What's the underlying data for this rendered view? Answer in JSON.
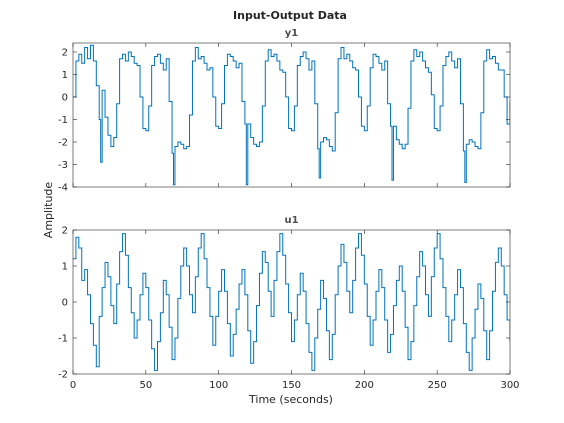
{
  "figure": {
    "title": "Input-Output Data",
    "xlabel": "Time (seconds)",
    "ylabel": "Amplitude",
    "line_color": "#0072BD",
    "axis_color": "#262626"
  },
  "chart_data": [
    {
      "type": "line",
      "title": "y1",
      "xlim": [
        0,
        300
      ],
      "ylim": [
        -4,
        2.4
      ],
      "yticks": [
        2,
        1,
        0,
        -1,
        -2,
        -3,
        -4
      ],
      "xticks": [
        0,
        50,
        100,
        150,
        200,
        250,
        300
      ],
      "show_xtick_labels": false,
      "series": [
        {
          "x": [
            0,
            2,
            4,
            6,
            8,
            10,
            12,
            14,
            16,
            18,
            19,
            20,
            22,
            24,
            26,
            28,
            30,
            32,
            34,
            36,
            38,
            40,
            42,
            44,
            46,
            48,
            50,
            52,
            54,
            56,
            58,
            60,
            62,
            64,
            66,
            68,
            69,
            70,
            72,
            74,
            76,
            78,
            80,
            82,
            84,
            86,
            88,
            90,
            92,
            94,
            96,
            98,
            100,
            102,
            104,
            106,
            108,
            110,
            112,
            114,
            116,
            118,
            119,
            120,
            122,
            124,
            126,
            128,
            130,
            132,
            134,
            136,
            138,
            140,
            142,
            144,
            146,
            148,
            150,
            152,
            154,
            156,
            158,
            160,
            162,
            164,
            166,
            168,
            169,
            170,
            172,
            174,
            176,
            178,
            180,
            182,
            184,
            186,
            188,
            190,
            192,
            194,
            196,
            198,
            200,
            202,
            204,
            206,
            208,
            210,
            212,
            214,
            216,
            218,
            219,
            220,
            222,
            224,
            226,
            228,
            230,
            232,
            234,
            236,
            238,
            240,
            242,
            244,
            246,
            248,
            250,
            252,
            254,
            256,
            258,
            260,
            262,
            264,
            266,
            268,
            269,
            270,
            272,
            274,
            276,
            278,
            280,
            282,
            284,
            286,
            288,
            290,
            292,
            294,
            296,
            298,
            300
          ],
          "y": [
            0,
            1.6,
            1.9,
            1.5,
            2.2,
            1.7,
            2.3,
            1.6,
            0.5,
            -1.0,
            -2.9,
            0.3,
            -0.9,
            -1.7,
            -2.2,
            -1.8,
            -0.3,
            1.7,
            1.9,
            1.6,
            2.0,
            1.8,
            1.5,
            1.4,
            0.0,
            -1.4,
            -1.5,
            -0.4,
            1.4,
            1.8,
            1.9,
            1.5,
            1.2,
            1.7,
            -0.2,
            -2.5,
            -3.9,
            -2.2,
            -2.0,
            -2.1,
            -2.3,
            -2.2,
            -0.8,
            1.6,
            2.2,
            1.7,
            1.8,
            1.5,
            1.2,
            1.3,
            0.0,
            -1.3,
            -1.4,
            -0.3,
            1.4,
            1.9,
            1.8,
            1.6,
            1.3,
            1.5,
            -0.2,
            -1.2,
            -3.9,
            -1.2,
            -1.8,
            -2.1,
            -2.2,
            -2.0,
            -0.4,
            1.6,
            2.1,
            1.8,
            1.9,
            1.6,
            1.2,
            1.1,
            0.0,
            -1.4,
            -1.5,
            -0.4,
            1.4,
            1.8,
            2.0,
            1.7,
            1.2,
            1.6,
            -0.3,
            -2.3,
            -3.6,
            -2.0,
            -1.8,
            -1.9,
            -2.2,
            -2.4,
            -0.7,
            1.7,
            2.2,
            1.7,
            1.9,
            1.6,
            1.3,
            1.2,
            0.0,
            -1.3,
            -1.5,
            -0.4,
            1.3,
            1.9,
            1.8,
            1.5,
            1.2,
            1.6,
            -0.3,
            -1.3,
            -3.7,
            -1.3,
            -1.9,
            -2.1,
            -2.3,
            -2.1,
            -0.5,
            1.6,
            2.1,
            1.8,
            2.0,
            1.6,
            1.3,
            1.1,
            0.1,
            -1.4,
            -1.5,
            -0.4,
            1.4,
            1.8,
            2.0,
            1.6,
            1.3,
            1.7,
            -0.3,
            -2.4,
            -3.8,
            -2.1,
            -1.9,
            -2.0,
            -2.2,
            -2.3,
            -0.7,
            1.6,
            2.1,
            1.7,
            1.8,
            1.5,
            1.2,
            1.2,
            0.0,
            -1.2,
            -0.2
          ]
        }
      ]
    },
    {
      "type": "line",
      "title": "u1",
      "xlim": [
        0,
        300
      ],
      "ylim": [
        -2,
        2
      ],
      "yticks": [
        2,
        1,
        0,
        -1,
        -2
      ],
      "xticks": [
        0,
        50,
        100,
        150,
        200,
        250,
        300
      ],
      "xtick_labels": [
        "0",
        "50",
        "100",
        "150",
        "200",
        "250",
        "300"
      ],
      "series": [
        {
          "x": [
            0,
            2,
            4,
            6,
            8,
            10,
            12,
            14,
            16,
            18,
            20,
            22,
            24,
            26,
            28,
            30,
            32,
            34,
            36,
            38,
            40,
            42,
            44,
            46,
            48,
            50,
            52,
            54,
            56,
            58,
            60,
            62,
            64,
            66,
            68,
            70,
            72,
            74,
            76,
            78,
            80,
            82,
            84,
            86,
            88,
            90,
            92,
            94,
            96,
            98,
            100,
            102,
            104,
            106,
            108,
            110,
            112,
            114,
            116,
            118,
            120,
            122,
            124,
            126,
            128,
            130,
            132,
            134,
            136,
            138,
            140,
            142,
            144,
            146,
            148,
            150,
            152,
            154,
            156,
            158,
            160,
            162,
            164,
            166,
            168,
            170,
            172,
            174,
            176,
            178,
            180,
            182,
            184,
            186,
            188,
            190,
            192,
            194,
            196,
            198,
            200,
            202,
            204,
            206,
            208,
            210,
            212,
            214,
            216,
            218,
            220,
            222,
            224,
            226,
            228,
            230,
            232,
            234,
            236,
            238,
            240,
            242,
            244,
            246,
            248,
            250,
            252,
            254,
            256,
            258,
            260,
            262,
            264,
            266,
            268,
            270,
            272,
            274,
            276,
            278,
            280,
            282,
            284,
            286,
            288,
            290,
            292,
            294,
            296,
            298,
            300
          ],
          "y": [
            1.2,
            1.8,
            1.5,
            0.6,
            0.9,
            0.2,
            -0.6,
            -1.2,
            -1.8,
            -0.4,
            0.4,
            1.1,
            0.7,
            -0.1,
            -0.6,
            0.5,
            1.4,
            1.9,
            1.3,
            0.4,
            -0.3,
            -1.0,
            -0.5,
            0.2,
            0.8,
            0.4,
            -0.5,
            -1.3,
            -1.9,
            -1.1,
            -0.3,
            0.6,
            0.2,
            -0.7,
            -1.6,
            -1.0,
            0.1,
            1.0,
            1.5,
            1.0,
            0.2,
            -0.3,
            0.7,
            1.5,
            1.9,
            1.2,
            0.4,
            -0.4,
            -1.2,
            -0.4,
            0.3,
            0.9,
            0.3,
            -0.6,
            -1.5,
            -0.9,
            -0.2,
            0.5,
            0.9,
            0.2,
            -0.8,
            -1.7,
            -1.1,
            -0.1,
            0.8,
            1.4,
            1.1,
            0.3,
            -0.4,
            0.6,
            1.4,
            1.9,
            1.3,
            0.5,
            -0.3,
            -1.1,
            -0.5,
            0.2,
            0.8,
            0.3,
            -0.6,
            -1.4,
            -1.9,
            -1.0,
            -0.2,
            0.6,
            0.1,
            -0.8,
            -1.6,
            -0.9,
            0.2,
            1.0,
            1.6,
            1.1,
            0.3,
            -0.3,
            0.6,
            1.5,
            1.9,
            1.3,
            0.5,
            -0.4,
            -1.2,
            -0.5,
            0.3,
            0.9,
            0.4,
            -0.5,
            -1.4,
            -0.9,
            -0.1,
            0.6,
            1.0,
            0.3,
            -0.7,
            -1.6,
            -1.1,
            -0.1,
            0.7,
            1.4,
            1.0,
            0.2,
            -0.4,
            0.7,
            1.5,
            1.9,
            1.2,
            0.4,
            -0.4,
            -1.1,
            -0.5,
            0.2,
            0.9,
            0.4,
            -0.6,
            -1.4,
            -1.9,
            -1.0,
            -0.2,
            0.5,
            0.1,
            -0.8,
            -1.6,
            -0.8,
            0.3,
            1.1,
            1.5,
            1.0,
            0.2,
            -0.5,
            -1.1
          ]
        }
      ]
    }
  ]
}
